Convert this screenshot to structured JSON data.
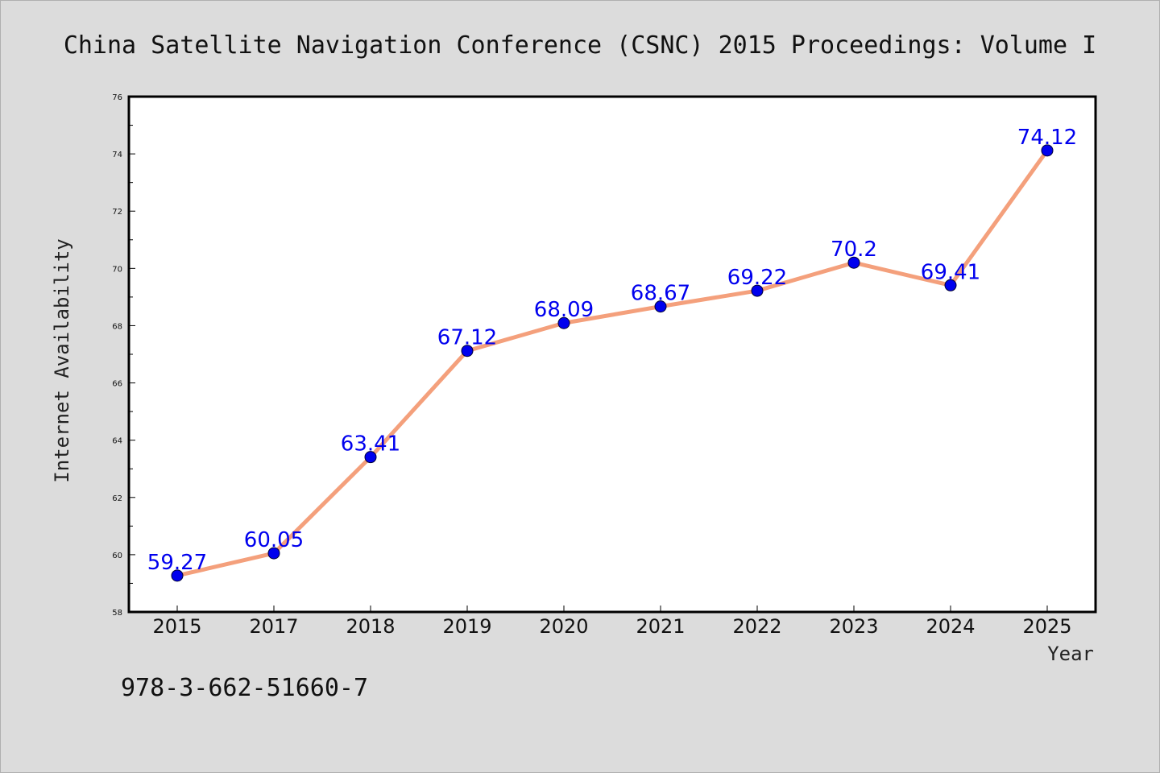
{
  "chart_data": {
    "type": "line",
    "title": "China Satellite Navigation Conference (CSNC) 2015 Proceedings: Volume I",
    "xlabel": "Year",
    "ylabel": "Internet Availability",
    "categories": [
      "2015",
      "2017",
      "2018",
      "2019",
      "2020",
      "2021",
      "2022",
      "2023",
      "2024",
      "2025"
    ],
    "series": [
      {
        "values": [
          59.27,
          60.05,
          63.41,
          67.12,
          68.09,
          68.67,
          69.22,
          70.2,
          69.41,
          74.12
        ]
      }
    ],
    "data_labels": [
      "59.27",
      "60.05",
      "63.41",
      "67.12",
      "68.09",
      "68.67",
      "69.22",
      "70.2",
      "69.41",
      "74.12"
    ],
    "ylim": [
      58,
      76
    ],
    "yticks": [
      58,
      60,
      62,
      64,
      66,
      68,
      70,
      72,
      74,
      76
    ],
    "grid": false,
    "legend": "none",
    "line_color": "#f4a07c",
    "marker_color": "#0000ee",
    "label_color": "#0000ee"
  },
  "footer": {
    "isbn": "978-3-662-51660-7"
  }
}
